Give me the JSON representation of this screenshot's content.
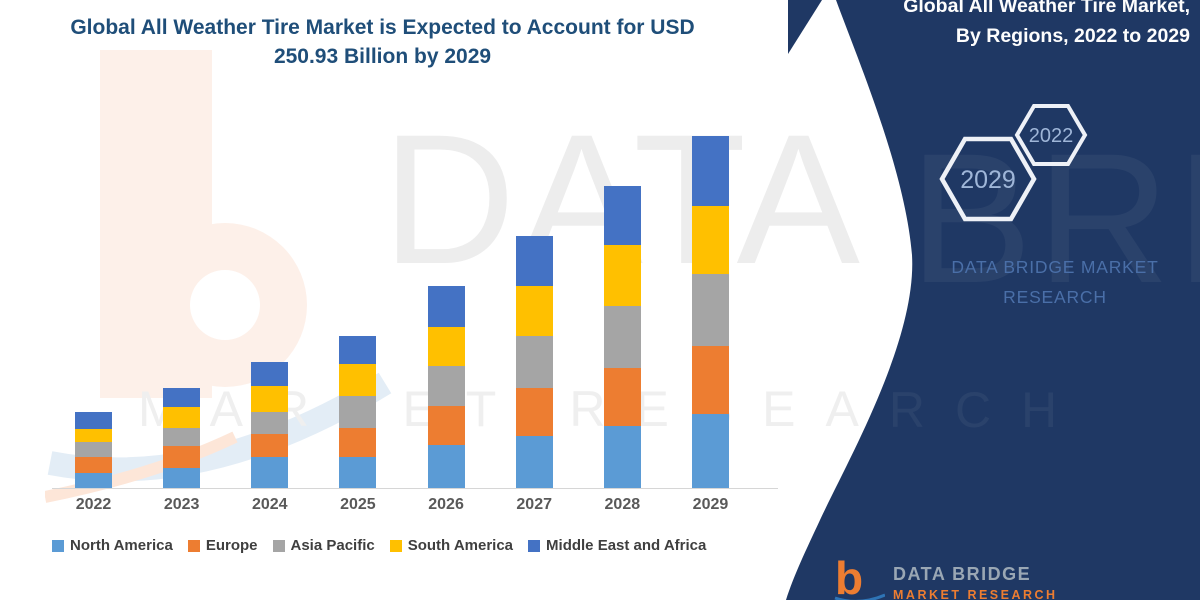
{
  "title": {
    "line1": "Global All Weather Tire Market is Expected to Account for USD",
    "line2": "250.93 Billion by 2029",
    "full": "Global All Weather Tire Market is Expected to Account for USD 250.93 Billion by 2029"
  },
  "sidebar": {
    "heading_line1": "Global All Weather Tire Market,",
    "heading_line2": "By Regions, 2022 to 2029",
    "hexagon_large": "2029",
    "hexagon_small": "2022",
    "brand": "DATA BRIDGE MARKET RESEARCH"
  },
  "watermark": {
    "brand": "DATA BRIDGE",
    "tagline": "MARKET RESEARCH"
  },
  "footer_logo": {
    "line1": "DATA BRIDGE",
    "line2": "MARKET RESEARCH"
  },
  "colors": {
    "panel_navy": "#1F3864",
    "title_text": "#1F4E79",
    "axis_text": "#595959",
    "legend_text": "#3f3f3f",
    "sidebar_brand_text": "#4a6fa8",
    "hexagon_outline": "#eef1f7",
    "hexagon_text": "#9fb6d8",
    "logo_orange": "#ED7D31"
  },
  "chart_data": {
    "type": "bar",
    "stacked": true,
    "title": "Global All Weather Tire Market is Expected to Account for USD 250.93 Billion by 2029",
    "unit": "USD Billion",
    "xlabel": "",
    "ylabel": "",
    "y_axis_visible": false,
    "grid": false,
    "legend_position": "bottom",
    "ylim": [
      0,
      260
    ],
    "categories": [
      "2022",
      "2023",
      "2024",
      "2025",
      "2026",
      "2027",
      "2028",
      "2029"
    ],
    "series": [
      {
        "name": "North America",
        "color": "#5B9BD5",
        "values": [
          10.7,
          14.3,
          22.1,
          22.1,
          30.7,
          37.1,
          44.2,
          52.8
        ]
      },
      {
        "name": "Europe",
        "color": "#ED7D31",
        "values": [
          11.4,
          15.7,
          16.4,
          20.7,
          27.8,
          34.2,
          41.4,
          48.5
        ]
      },
      {
        "name": "Asia Pacific",
        "color": "#A5A5A5",
        "values": [
          10.7,
          12.8,
          15.7,
          22.8,
          28.5,
          37.1,
          44.2,
          51.3
        ]
      },
      {
        "name": "South America",
        "color": "#FFC000",
        "values": [
          9.3,
          15.0,
          18.5,
          22.8,
          27.8,
          35.7,
          43.5,
          48.5
        ]
      },
      {
        "name": "Middle East and Africa",
        "color": "#4472C4",
        "values": [
          12.1,
          13.5,
          17.1,
          20.0,
          29.2,
          35.7,
          42.1,
          49.9
        ]
      }
    ],
    "totals_estimated": [
      54.2,
      71.3,
      89.8,
      108.4,
      144.0,
      179.8,
      215.4,
      250.93
    ],
    "highlight": {
      "year": "2029",
      "value": "USD 250.93 Billion"
    }
  }
}
